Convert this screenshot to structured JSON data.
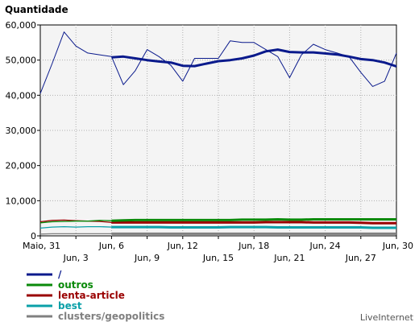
{
  "chart_data": {
    "type": "line",
    "title": "Quantidade",
    "credit": "LiveInternet",
    "ylim": [
      0,
      60000
    ],
    "y_ticks": [
      {
        "value": 0,
        "label": "0"
      },
      {
        "value": 10000,
        "label": "10,000"
      },
      {
        "value": 20000,
        "label": "20,000"
      },
      {
        "value": 30000,
        "label": "30,000"
      },
      {
        "value": 40000,
        "label": "40,000"
      },
      {
        "value": 50000,
        "label": "50,000"
      },
      {
        "value": 60000,
        "label": "60,000"
      }
    ],
    "x": [
      "Maio, 31",
      "Jun, 1",
      "Jun, 2",
      "Jun, 3",
      "Jun, 4",
      "Jun, 5",
      "Jun, 6",
      "Jun, 7",
      "Jun, 8",
      "Jun, 9",
      "Jun, 10",
      "Jun, 11",
      "Jun, 12",
      "Jun, 13",
      "Jun, 14",
      "Jun, 15",
      "Jun, 16",
      "Jun, 17",
      "Jun, 18",
      "Jun, 19",
      "Jun, 20",
      "Jun, 21",
      "Jun, 22",
      "Jun, 23",
      "Jun, 24",
      "Jun, 25",
      "Jun, 26",
      "Jun, 27",
      "Jun, 28",
      "Jun, 29",
      "Jun, 30"
    ],
    "x_ticks": [
      {
        "index": 0,
        "label": "Maio, 31",
        "row": 0
      },
      {
        "index": 3,
        "label": "Jun, 3",
        "row": 1
      },
      {
        "index": 6,
        "label": "Jun, 6",
        "row": 0
      },
      {
        "index": 9,
        "label": "Jun, 9",
        "row": 1
      },
      {
        "index": 12,
        "label": "Jun, 12",
        "row": 0
      },
      {
        "index": 15,
        "label": "Jun, 15",
        "row": 1
      },
      {
        "index": 18,
        "label": "Jun, 18",
        "row": 0
      },
      {
        "index": 21,
        "label": "Jun, 21",
        "row": 1
      },
      {
        "index": 24,
        "label": "Jun, 24",
        "row": 0
      },
      {
        "index": 27,
        "label": "Jun, 27",
        "row": 1
      },
      {
        "index": 30,
        "label": "Jun, 30",
        "row": 0
      }
    ],
    "grid": true,
    "legend_position": "bottom-left",
    "series": [
      {
        "name": "/",
        "color": "#0a1a8c",
        "kind": "daily",
        "values": [
          40500,
          49000,
          58000,
          54000,
          52000,
          51500,
          51000,
          43000,
          47000,
          53000,
          51000,
          48500,
          44000,
          50500,
          50500,
          50500,
          55500,
          55000,
          55000,
          53000,
          51000,
          45000,
          51500,
          54500,
          53000,
          52000,
          51000,
          46500,
          42500,
          44000,
          52000
        ]
      },
      {
        "name": "/",
        "color": "#0a1a8c",
        "kind": "average",
        "values": [
          null,
          null,
          null,
          null,
          null,
          null,
          50800,
          51000,
          50500,
          50000,
          49600,
          49300,
          48400,
          48300,
          49000,
          49700,
          50000,
          50500,
          51300,
          52500,
          53000,
          52300,
          52200,
          52200,
          51900,
          51600,
          51000,
          50300,
          50000,
          49300,
          48200
        ]
      },
      {
        "name": "outros",
        "color": "#0a8a0a",
        "kind": "daily",
        "values": [
          3700,
          4000,
          4100,
          4200,
          4200,
          4400,
          4300,
          4400,
          4500,
          4500,
          4500,
          4500,
          4500,
          4500,
          4500,
          4500,
          4500,
          4600,
          4600,
          4600,
          4700,
          4600,
          4600,
          4700,
          4700,
          4700,
          4700,
          4700,
          4700,
          4700,
          4700
        ]
      },
      {
        "name": "lenta-article",
        "color": "#9a0000",
        "kind": "daily",
        "values": [
          4000,
          4400,
          4500,
          4300,
          4200,
          4100,
          3800,
          3800,
          3800,
          3800,
          3800,
          3800,
          3800,
          3800,
          3800,
          3800,
          3800,
          3800,
          3800,
          3900,
          3900,
          3900,
          3900,
          3800,
          3800,
          3800,
          3800,
          3700,
          3600,
          3600,
          3600
        ]
      },
      {
        "name": "best",
        "color": "#0aa0a8",
        "kind": "daily",
        "values": [
          2200,
          2500,
          2600,
          2500,
          2600,
          2600,
          2500,
          2500,
          2500,
          2500,
          2500,
          2400,
          2400,
          2400,
          2400,
          2400,
          2500,
          2500,
          2500,
          2500,
          2400,
          2400,
          2400,
          2400,
          2400,
          2400,
          2400,
          2400,
          2300,
          2300,
          2300
        ]
      },
      {
        "name": "clusters/geopolitics",
        "color": "#808080",
        "kind": "daily",
        "values": [
          500,
          600,
          600,
          600,
          600,
          600,
          600,
          600,
          600,
          600,
          600,
          600,
          600,
          600,
          600,
          600,
          600,
          600,
          600,
          600,
          600,
          600,
          600,
          600,
          600,
          600,
          600,
          600,
          600,
          600,
          600
        ]
      }
    ],
    "legend": [
      {
        "label": "/",
        "color": "#0a1a8c"
      },
      {
        "label": "outros",
        "color": "#0a8a0a"
      },
      {
        "label": "lenta-article",
        "color": "#9a0000"
      },
      {
        "label": "best",
        "color": "#0aa0a8"
      },
      {
        "label": "clusters/geopolitics",
        "color": "#808080"
      }
    ]
  }
}
